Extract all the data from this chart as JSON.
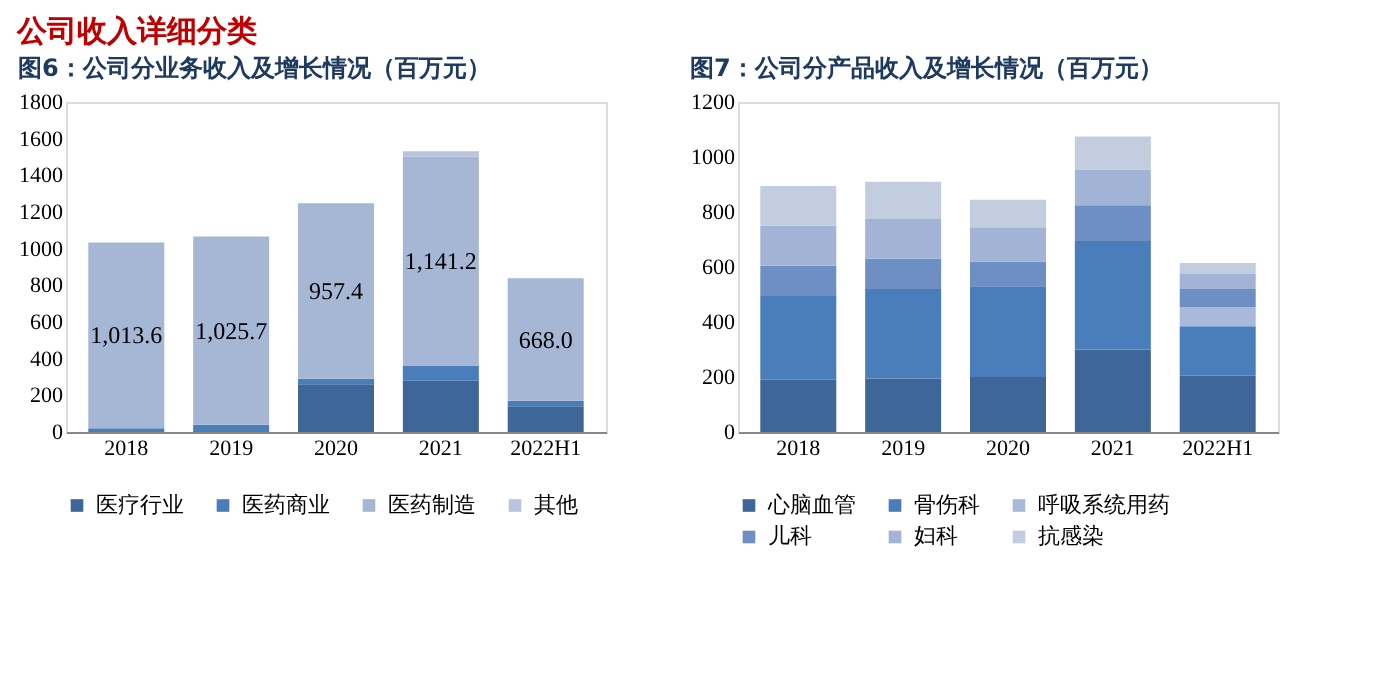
{
  "chart_data": [
    {
      "type": "bar",
      "stacked": true,
      "title": "图6：公司分业务收入及增长情况（百万元）",
      "annotations": [
        "公司收入详细分类"
      ],
      "categories": [
        "2018",
        "2019",
        "2020",
        "2021",
        "2022H1"
      ],
      "ylim": [
        0,
        1800
      ],
      "yticks": [
        0,
        200,
        400,
        600,
        800,
        1000,
        1200,
        1400,
        1600,
        1800
      ],
      "grid": false,
      "legend": "bottom",
      "series": [
        {
          "name": "医疗行业",
          "color": "#3f6698",
          "values": [
            0,
            0,
            260,
            280,
            140
          ]
        },
        {
          "name": "医药商业",
          "color": "#4a7ebb",
          "values": [
            20,
            40,
            30,
            80,
            30
          ]
        },
        {
          "name": "医药制造",
          "color": "#a6b7d6",
          "values": [
            1013.6,
            1025.7,
            957.4,
            1141.2,
            668.0
          ],
          "value_labels": [
            "1,013.6",
            "1,025.7",
            "957.4",
            "1,141.2",
            "668.0"
          ]
        },
        {
          "name": "其他",
          "color": "#b9c5de",
          "values": [
            0,
            0,
            0,
            30,
            null
          ]
        }
      ]
    },
    {
      "type": "bar",
      "stacked": true,
      "title": "图7：公司分产品收入及增长情况（百万元）",
      "categories": [
        "2018",
        "2019",
        "2020",
        "2021",
        "2022H1"
      ],
      "ylim": [
        0,
        1200
      ],
      "yticks": [
        0,
        200,
        400,
        600,
        800,
        1000,
        1200
      ],
      "grid": false,
      "legend": "bottom",
      "series": [
        {
          "name": "心脑血管",
          "color": "#3f6698",
          "values": [
            190,
            195,
            200,
            300,
            205
          ]
        },
        {
          "name": "骨伤科",
          "color": "#4a7ebb",
          "values": [
            305,
            325,
            330,
            395,
            180
          ]
        },
        {
          "name": "呼吸系统用药",
          "color": "#a9b9da",
          "values": [
            0,
            0,
            0,
            0,
            70
          ]
        },
        {
          "name": "儿科",
          "color": "#6e8fc4",
          "values": [
            110,
            110,
            90,
            130,
            65
          ]
        },
        {
          "name": "妇科",
          "color": "#a1b4d6",
          "values": [
            145,
            145,
            125,
            130,
            55
          ]
        },
        {
          "name": "抗感染",
          "color": "#c3cde0",
          "values": [
            145,
            135,
            100,
            120,
            40
          ]
        }
      ]
    }
  ]
}
